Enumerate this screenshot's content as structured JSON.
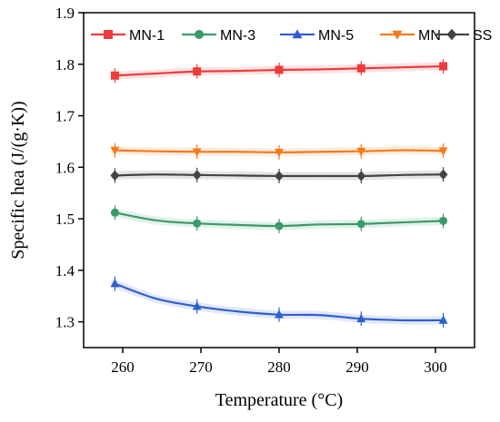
{
  "chart_data": {
    "type": "line",
    "xlabel": "Temperature (°C)",
    "ylabel": "Specific hea (J/(g·K))",
    "xlim": [
      255,
      305
    ],
    "ylim": [
      1.25,
      1.9
    ],
    "xticks": [
      260,
      270,
      280,
      290,
      300
    ],
    "yticks": [
      1.3,
      1.4,
      1.5,
      1.6,
      1.7,
      1.8,
      1.9
    ],
    "ytick_labels": [
      "1.3",
      "1.4",
      "1.5",
      "1.6",
      "1.7",
      "1.8",
      "1.9"
    ],
    "x": [
      259,
      269.5,
      280,
      290.5,
      301
    ],
    "legend_position": "top",
    "grid": false,
    "series": [
      {
        "name": "MN-1",
        "color": "#ef3b3b",
        "marker": "square",
        "values": [
          1.778,
          1.786,
          1.789,
          1.792,
          1.796
        ],
        "mid": [
          1.782,
          1.787,
          1.79,
          1.794
        ]
      },
      {
        "name": "MN-3",
        "color": "#3a9a6a",
        "marker": "circle",
        "values": [
          1.512,
          1.491,
          1.486,
          1.49,
          1.496
        ],
        "mid": [
          1.497,
          1.488,
          1.489,
          1.493
        ]
      },
      {
        "name": "MN-5",
        "color": "#2f5fcf",
        "marker": "triangle-up",
        "values": [
          1.374,
          1.33,
          1.314,
          1.306,
          1.303
        ],
        "mid": [
          1.345,
          1.32,
          1.313,
          1.303
        ]
      },
      {
        "name": "MN",
        "color": "#f57a1a",
        "marker": "triangle-down",
        "values": [
          1.633,
          1.63,
          1.629,
          1.631,
          1.632
        ],
        "mid": [
          1.631,
          1.63,
          1.63,
          1.633
        ]
      },
      {
        "name": "SS",
        "color": "#444444",
        "marker": "diamond",
        "values": [
          1.584,
          1.585,
          1.583,
          1.583,
          1.586
        ],
        "mid": [
          1.586,
          1.584,
          1.583,
          1.585
        ]
      }
    ]
  }
}
